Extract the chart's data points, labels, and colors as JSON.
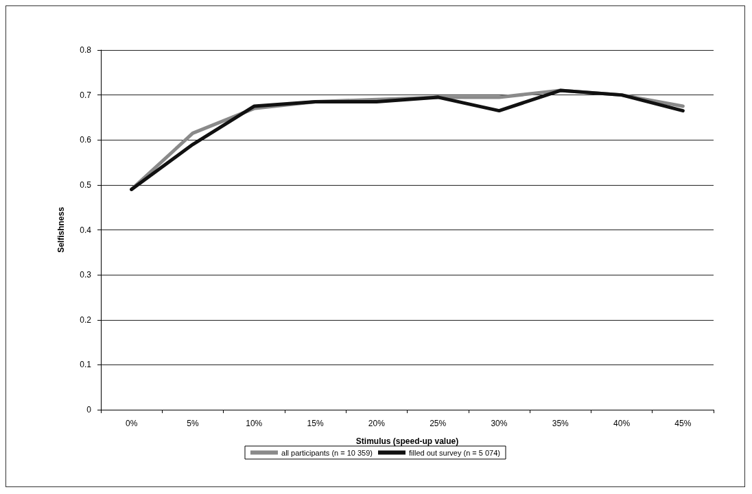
{
  "chart_data": {
    "type": "line",
    "xlabel": "Stimulus (speed-up value)",
    "ylabel": "Selfishness",
    "categories": [
      "0%",
      "5%",
      "10%",
      "15%",
      "20%",
      "25%",
      "30%",
      "35%",
      "40%",
      "45%"
    ],
    "series": [
      {
        "name": "all participants (n = 10 359)",
        "color": "#8a8a8a",
        "values": [
          0.49,
          0.615,
          0.67,
          0.685,
          0.69,
          0.695,
          0.695,
          0.71,
          0.7,
          0.675
        ]
      },
      {
        "name": "filled out survey (n = 5 074)",
        "color": "#111111",
        "values": [
          0.49,
          0.59,
          0.675,
          0.685,
          0.685,
          0.695,
          0.665,
          0.71,
          0.7,
          0.665
        ]
      }
    ],
    "ylim": [
      0,
      0.8
    ],
    "yticks": [
      0,
      0.1,
      0.2,
      0.3,
      0.4,
      0.5,
      0.6,
      0.7,
      0.8
    ],
    "grid": "y",
    "legend": "bottom",
    "marker": "none",
    "line_style": "solid"
  }
}
